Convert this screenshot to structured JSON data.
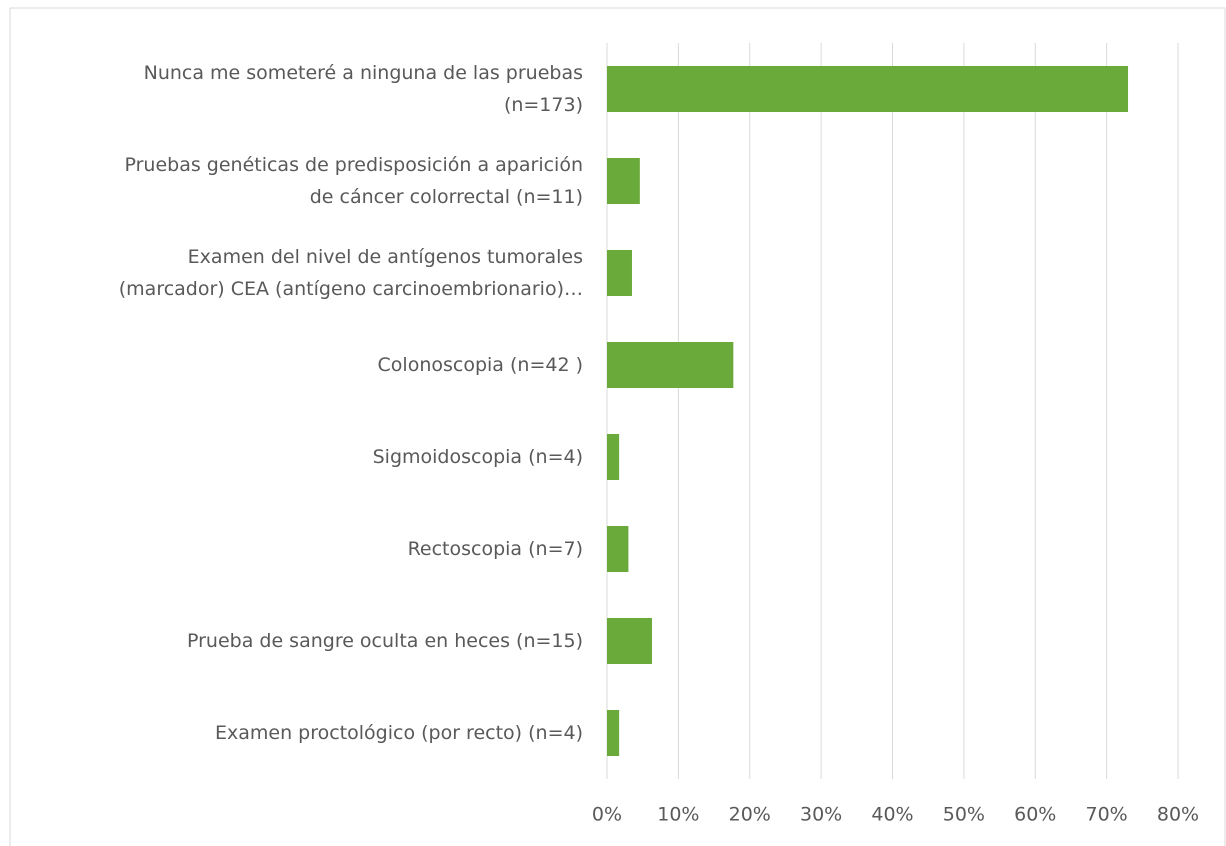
{
  "chart_data": {
    "type": "hbar",
    "categories": [
      "Nunca me someteré a ninguna de las pruebas\n(n=173)",
      "Pruebas genéticas de predisposición a aparición\nde cáncer colorrectal (n=11)",
      "Examen del nivel de antígenos tumorales\n(marcador) CEA (antígeno carcinoembrionario)…",
      "Colonoscopia (n=42 )",
      "Sigmoidoscopia (n=4)",
      "Rectoscopia (n=7)",
      "Prueba de sangre oculta en heces (n=15)",
      "Examen proctológico (por recto) (n=4)"
    ],
    "values": [
      73,
      4.6,
      3.5,
      17.7,
      1.7,
      3.0,
      6.3,
      1.7
    ],
    "color": "#6aaa3a",
    "xlim": [
      0,
      80
    ],
    "xticks": [
      {
        "value": 0,
        "label": "0%"
      },
      {
        "value": 10,
        "label": "10%"
      },
      {
        "value": 20,
        "label": "20%"
      },
      {
        "value": 30,
        "label": "30%"
      },
      {
        "value": 40,
        "label": "40%"
      },
      {
        "value": 50,
        "label": "50%"
      },
      {
        "value": 60,
        "label": "60%"
      },
      {
        "value": 70,
        "label": "70%"
      },
      {
        "value": 80,
        "label": "80%"
      }
    ],
    "grid": true
  }
}
